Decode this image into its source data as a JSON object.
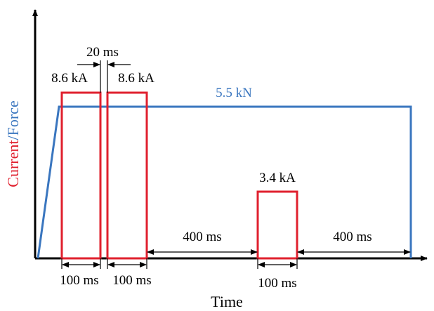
{
  "diagram": {
    "y_axis_label": {
      "part1": "Current",
      "part2": "/Force"
    },
    "x_axis_label": "Time",
    "force_label": "5.5 kN",
    "pulse1_label": "8.6 kA",
    "pulse2_label": "8.6 kA",
    "pulse3_label": "3.4 kA",
    "gap_label": "20 ms",
    "dur1_label": "100 ms",
    "dur2_label": "100 ms",
    "dur3_label": "100 ms",
    "interval1_label": "400 ms",
    "interval2_label": "400 ms",
    "colors": {
      "current": "#e0202e",
      "force": "#3a76bf",
      "axis": "#000000"
    }
  }
}
